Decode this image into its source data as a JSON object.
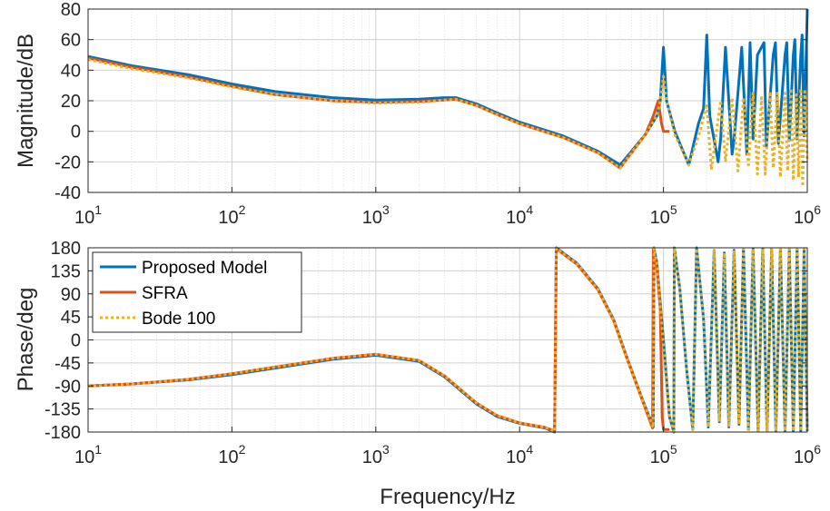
{
  "chart_data": [
    {
      "type": "line",
      "panel": "magnitude",
      "xlabel": "Frequency/Hz",
      "ylabel": "Magnitude/dB",
      "xscale": "log",
      "xlim": [
        10,
        1000000
      ],
      "ylim": [
        -40,
        80
      ],
      "yticks": [
        -40,
        -20,
        0,
        20,
        40,
        60,
        80
      ],
      "xticks": [
        {
          "base": "10",
          "exp": "1"
        },
        {
          "base": "10",
          "exp": "2"
        },
        {
          "base": "10",
          "exp": "3"
        },
        {
          "base": "10",
          "exp": "4"
        },
        {
          "base": "10",
          "exp": "5"
        },
        {
          "base": "10",
          "exp": "6"
        }
      ],
      "grid": true,
      "series": [
        {
          "name": "Proposed Model",
          "color": "#0072BD",
          "style": "solid",
          "x": [
            10,
            20,
            50,
            100,
            200,
            500,
            1000,
            2000,
            3000,
            3600,
            5000,
            7000,
            10000,
            20000,
            35000,
            50000,
            60000,
            75000,
            90000,
            95000,
            100000,
            105000,
            120000,
            150000,
            175000,
            190000,
            200000,
            210000,
            240000,
            250000,
            270000,
            300000,
            310000,
            350000,
            380000,
            400000,
            420000,
            450000,
            500000,
            520000,
            580000,
            600000,
            630000,
            700000,
            720000,
            750000,
            800000,
            820000,
            850000,
            900000,
            920000,
            950000,
            1000000
          ],
          "y": [
            49,
            43,
            37,
            31,
            26,
            22,
            20.5,
            21,
            22,
            22,
            18,
            12,
            6,
            -3,
            -13,
            -22,
            -13,
            -2,
            10,
            20,
            55,
            20,
            0,
            -22,
            5,
            15,
            63,
            10,
            -20,
            -5,
            55,
            -15,
            -5,
            55,
            -15,
            58,
            -5,
            50,
            58,
            -10,
            50,
            58,
            -8,
            50,
            58,
            -6,
            50,
            60,
            -5,
            50,
            63,
            -3,
            80
          ]
        },
        {
          "name": "SFRA",
          "color": "#D95319",
          "style": "solid",
          "x": [
            10,
            20,
            50,
            100,
            200,
            500,
            1000,
            2000,
            3000,
            3600,
            5000,
            7000,
            10000,
            20000,
            35000,
            50000,
            60000,
            75000,
            85000,
            92000,
            97000,
            100000,
            103000,
            110000
          ],
          "y": [
            48,
            42,
            35.5,
            29.5,
            24,
            20,
            19,
            19.5,
            20.5,
            21,
            17,
            11,
            5,
            -4,
            -14,
            -24,
            -14,
            -2,
            10,
            20,
            5,
            0,
            0,
            0
          ]
        },
        {
          "name": "Bode 100",
          "color": "#EDB120",
          "style": "dotted",
          "x": [
            10,
            20,
            50,
            100,
            200,
            500,
            1000,
            2000,
            3000,
            3600,
            5000,
            7000,
            10000,
            20000,
            35000,
            50000,
            60000,
            75000,
            90000,
            95000,
            100000,
            105000,
            120000,
            150000,
            180000,
            200000,
            215000,
            250000,
            270000,
            300000,
            330000,
            360000,
            390000,
            420000,
            450000,
            480000,
            510000,
            550000,
            580000,
            620000,
            650000,
            700000,
            730000,
            770000,
            800000,
            840000,
            870000,
            900000,
            930000,
            960000,
            1000000
          ],
          "y": [
            47,
            41,
            35,
            29,
            24,
            20,
            18.5,
            19,
            20.5,
            21,
            17,
            11,
            5,
            -4,
            -14,
            -24,
            -14,
            -2,
            10,
            20,
            36,
            20,
            -2,
            -22,
            0,
            18,
            -25,
            20,
            -20,
            22,
            -26,
            22,
            -22,
            25,
            -28,
            22,
            -28,
            26,
            -24,
            25,
            -30,
            25,
            -26,
            28,
            -32,
            24,
            -30,
            28,
            -36,
            26,
            -20
          ]
        }
      ]
    },
    {
      "type": "line",
      "panel": "phase",
      "xlabel": "Frequency/Hz",
      "ylabel": "Phase/deg",
      "xscale": "log",
      "xlim": [
        10,
        1000000
      ],
      "ylim": [
        -180,
        180
      ],
      "yticks": [
        -180,
        -135,
        -90,
        -45,
        0,
        45,
        90,
        135,
        180
      ],
      "xticks": [
        {
          "base": "10",
          "exp": "1"
        },
        {
          "base": "10",
          "exp": "2"
        },
        {
          "base": "10",
          "exp": "3"
        },
        {
          "base": "10",
          "exp": "4"
        },
        {
          "base": "10",
          "exp": "5"
        },
        {
          "base": "10",
          "exp": "6"
        }
      ],
      "grid": true,
      "legend": {
        "position": "top-left",
        "entries": [
          "Proposed Model",
          "SFRA",
          "Bode 100"
        ]
      },
      "series": [
        {
          "name": "Proposed Model",
          "color": "#0072BD",
          "style": "solid",
          "x": [
            10,
            20,
            50,
            100,
            200,
            500,
            1000,
            2000,
            3000,
            5000,
            7000,
            10000,
            15000,
            17500,
            18000,
            25000,
            35000,
            45000,
            55000,
            70000,
            85000,
            86000,
            90000,
            100000,
            110000,
            118000,
            119000,
            130000,
            145000,
            160000,
            170000,
            190000,
            205000,
            225000,
            245000,
            265000,
            285000,
            310000,
            335000,
            360000,
            390000,
            420000,
            455000,
            490000,
            525000,
            565000,
            605000,
            650000,
            700000,
            750000,
            800000,
            850000,
            900000,
            950000,
            1000000
          ],
          "y": [
            -90,
            -86,
            -78,
            -68,
            -55,
            -38,
            -30,
            -42,
            -72,
            -125,
            -150,
            -163,
            -172,
            -180,
            180,
            150,
            100,
            40,
            -30,
            -110,
            -170,
            180,
            150,
            0,
            -150,
            -180,
            180,
            100,
            -60,
            -175,
            180,
            40,
            -170,
            175,
            -160,
            170,
            -170,
            175,
            -165,
            178,
            -175,
            178,
            -178,
            178,
            -178,
            178,
            -178,
            178,
            -178,
            178,
            -178,
            178,
            -178,
            178,
            -178
          ]
        },
        {
          "name": "SFRA",
          "color": "#D95319",
          "style": "solid",
          "x": [
            10,
            20,
            50,
            100,
            200,
            500,
            1000,
            2000,
            3000,
            5000,
            7000,
            10000,
            15000,
            17500,
            18000,
            25000,
            35000,
            45000,
            55000,
            70000,
            84000,
            85000,
            90000,
            95000,
            98000,
            100000,
            105000,
            110000
          ],
          "y": [
            -90,
            -86,
            -77,
            -66,
            -53,
            -36,
            -28,
            -40,
            -70,
            -123,
            -148,
            -162,
            -171,
            -178,
            178,
            148,
            98,
            38,
            -32,
            -112,
            -172,
            178,
            140,
            60,
            -150,
            -175,
            -175,
            -175
          ]
        },
        {
          "name": "Bode 100",
          "color": "#EDB120",
          "style": "dotted",
          "x": [
            10,
            20,
            50,
            100,
            200,
            500,
            1000,
            2000,
            3000,
            5000,
            7000,
            10000,
            15000,
            17500,
            18000,
            25000,
            35000,
            45000,
            55000,
            70000,
            85000,
            86000,
            90000,
            100000,
            110000,
            118000,
            119000,
            130000,
            145000,
            160000,
            170000,
            190000,
            205000,
            225000,
            245000,
            265000,
            285000,
            310000,
            335000,
            360000,
            390000,
            420000,
            455000,
            490000,
            525000,
            565000,
            605000,
            650000,
            700000,
            750000,
            800000,
            850000,
            900000,
            950000,
            1000000
          ],
          "y": [
            -90,
            -86,
            -77,
            -66,
            -53,
            -36,
            -28,
            -40,
            -70,
            -123,
            -148,
            -162,
            -171,
            -179,
            179,
            149,
            99,
            39,
            -31,
            -111,
            -171,
            179,
            149,
            -10,
            -150,
            -179,
            179,
            100,
            -60,
            -175,
            179,
            40,
            -170,
            175,
            -160,
            170,
            -170,
            175,
            -165,
            178,
            -175,
            178,
            -178,
            178,
            -178,
            178,
            -178,
            178,
            -178,
            178,
            -178,
            178,
            -178,
            178,
            -178
          ]
        }
      ]
    }
  ]
}
